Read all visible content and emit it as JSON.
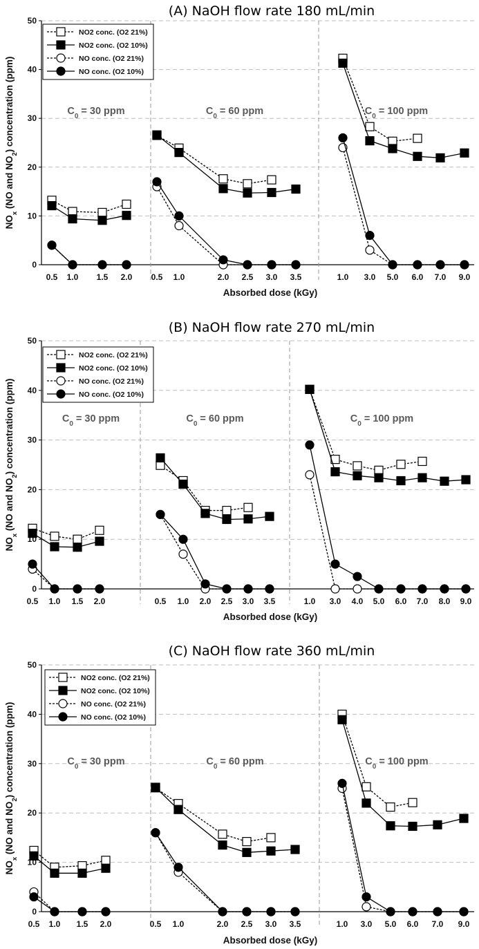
{
  "legend": [
    "NO2 conc. (O2 21%)",
    "NO2 conc. (O2 10%)",
    "NO conc. (O2 21%)",
    "NO conc. (O2 10%)"
  ],
  "axis": {
    "xlabel": "Absorbed dose (kGy)",
    "ylabel_parts": [
      "NO",
      "x",
      " (NO and NO",
      "2",
      ") concentration (ppm)"
    ],
    "ylim": [
      0,
      50
    ],
    "yticks": [
      "0",
      "10",
      "20",
      "30",
      "40",
      "50"
    ],
    "grid": "horizontal dashed"
  },
  "segment_label_parts": [
    [
      "C",
      "0",
      " = 30 ppm"
    ],
    [
      "C",
      "0",
      " = 60 ppm"
    ],
    [
      "C",
      "0",
      " = 100 ppm"
    ]
  ],
  "chart_data": [
    {
      "type": "line",
      "title": "(A) NaOH flow rate 180 mL/min",
      "segments": [
        {
          "label": "C0 = 30 ppm",
          "x": [
            "0.5",
            "1.0",
            "1.5",
            "2.0"
          ],
          "series": [
            {
              "name": "NO2 conc. (O2 21%)",
              "values": [
                13.2,
                10.9,
                10.7,
                12.4
              ]
            },
            {
              "name": "NO2 conc. (O2 10%)",
              "values": [
                12.1,
                9.4,
                9.1,
                10.1
              ]
            },
            {
              "name": "NO conc. (O2 21%)",
              "values": [
                4.0,
                0,
                0,
                0
              ]
            },
            {
              "name": "NO conc. (O2 10%)",
              "values": [
                4.0,
                0,
                0,
                0
              ]
            }
          ]
        },
        {
          "label": "C0 = 60 ppm",
          "x": [
            "0.5",
            "1.0",
            "2.0",
            "2.5",
            "3.0",
            "3.5"
          ],
          "series": [
            {
              "name": "NO2 conc. (O2 21%)",
              "values": [
                26.5,
                23.9,
                17.6,
                16.6,
                17.4,
                null
              ]
            },
            {
              "name": "NO2 conc. (O2 10%)",
              "values": [
                26.6,
                23.0,
                15.6,
                14.7,
                14.8,
                15.5
              ]
            },
            {
              "name": "NO conc. (O2 21%)",
              "values": [
                16.0,
                8.0,
                0,
                0,
                0,
                0
              ]
            },
            {
              "name": "NO conc. (O2 10%)",
              "values": [
                17.0,
                10.0,
                1.0,
                0,
                0,
                0
              ]
            }
          ]
        },
        {
          "label": "C0 = 100 ppm",
          "x": [
            "1.0",
            "3.0",
            "5.0",
            "6.0",
            "7.0",
            "9.0"
          ],
          "series": [
            {
              "name": "NO2 conc. (O2 21%)",
              "values": [
                42.3,
                28.3,
                25.3,
                25.9,
                null,
                null
              ]
            },
            {
              "name": "NO2 conc. (O2 10%)",
              "values": [
                41.3,
                25.4,
                23.8,
                22.2,
                21.9,
                22.9
              ]
            },
            {
              "name": "NO conc. (O2 21%)",
              "values": [
                24.0,
                3.0,
                0,
                0,
                0,
                0
              ]
            },
            {
              "name": "NO conc. (O2 10%)",
              "values": [
                26.0,
                6.0,
                0,
                0,
                0,
                0
              ]
            }
          ]
        }
      ]
    },
    {
      "type": "line",
      "title": "(B) NaOH flow rate 270 mL/min",
      "segments": [
        {
          "label": "C0 = 30 ppm",
          "x": [
            "0.5",
            "1.0",
            "1.5",
            "2.0"
          ],
          "series": [
            {
              "name": "NO2 conc. (O2 21%)",
              "values": [
                12.2,
                10.6,
                10.0,
                11.8
              ]
            },
            {
              "name": "NO2 conc. (O2 10%)",
              "values": [
                11.2,
                8.5,
                8.4,
                9.6
              ]
            },
            {
              "name": "NO conc. (O2 21%)",
              "values": [
                4.0,
                0,
                0,
                0
              ]
            },
            {
              "name": "NO conc. (O2 10%)",
              "values": [
                5.0,
                0,
                0,
                0
              ]
            }
          ]
        },
        {
          "label": "C0 = 60 ppm",
          "x": [
            "0.5",
            "1.0",
            "2.0",
            "2.5",
            "3.0",
            "3.5"
          ],
          "series": [
            {
              "name": "NO2 conc. (O2 21%)",
              "values": [
                24.9,
                21.8,
                15.8,
                15.8,
                16.4,
                null
              ]
            },
            {
              "name": "NO2 conc. (O2 10%)",
              "values": [
                26.4,
                21.1,
                15.2,
                14.0,
                14.1,
                14.6
              ]
            },
            {
              "name": "NO conc. (O2 21%)",
              "values": [
                15.0,
                7.0,
                0,
                0,
                0,
                0
              ]
            },
            {
              "name": "NO conc. (O2 10%)",
              "values": [
                15.0,
                10.0,
                1.0,
                0,
                0,
                0
              ]
            }
          ]
        },
        {
          "label": "C0 = 100 ppm",
          "x": [
            "1.0",
            "3.0",
            "4.0",
            "5.0",
            "6.0",
            "7.0",
            "8.0",
            "9.0"
          ],
          "series": [
            {
              "name": "NO2 conc. (O2 21%)",
              "values": [
                40.2,
                26.1,
                24.8,
                23.9,
                25.1,
                25.7,
                null,
                null
              ]
            },
            {
              "name": "NO2 conc. (O2 10%)",
              "values": [
                40.2,
                23.6,
                22.8,
                22.4,
                21.8,
                22.4,
                21.7,
                22.0
              ]
            },
            {
              "name": "NO conc. (O2 21%)",
              "values": [
                23.0,
                0,
                0,
                0,
                0,
                0,
                0,
                0
              ]
            },
            {
              "name": "NO conc. (O2 10%)",
              "values": [
                29.0,
                5.0,
                2.5,
                0,
                0,
                0,
                0,
                0
              ]
            }
          ]
        }
      ]
    },
    {
      "type": "line",
      "title": "(C) NaOH flow rate 360 mL/min",
      "segments": [
        {
          "label": "C0 = 30 ppm",
          "x": [
            "0.5",
            "1.0",
            "1.5",
            "2.0"
          ],
          "series": [
            {
              "name": "NO2 conc. (O2 21%)",
              "values": [
                12.4,
                9.0,
                9.3,
                10.4
              ]
            },
            {
              "name": "NO2 conc. (O2 10%)",
              "values": [
                11.3,
                7.8,
                7.8,
                8.8
              ]
            },
            {
              "name": "NO conc. (O2 21%)",
              "values": [
                4.0,
                0,
                0,
                0
              ]
            },
            {
              "name": "NO conc. (O2 10%)",
              "values": [
                3.0,
                0,
                0,
                0
              ]
            }
          ]
        },
        {
          "label": "C0 = 60 ppm",
          "x": [
            "0.5",
            "1.0",
            "2.0",
            "2.5",
            "3.0",
            "3.5"
          ],
          "series": [
            {
              "name": "NO2 conc. (O2 21%)",
              "values": [
                25.1,
                21.9,
                15.7,
                14.2,
                15.0,
                null
              ]
            },
            {
              "name": "NO2 conc. (O2 10%)",
              "values": [
                25.2,
                20.7,
                13.5,
                12.0,
                12.3,
                12.6
              ]
            },
            {
              "name": "NO conc. (O2 21%)",
              "values": [
                16.0,
                8.0,
                0,
                0,
                0,
                0
              ]
            },
            {
              "name": "NO conc. (O2 10%)",
              "values": [
                16.0,
                9.0,
                0,
                0,
                0,
                0
              ]
            }
          ]
        },
        {
          "label": "C0 = 100 ppm",
          "x": [
            "1.0",
            "3.0",
            "5.0",
            "6.0",
            "7.0",
            "9.0"
          ],
          "series": [
            {
              "name": "NO2 conc. (O2 21%)",
              "values": [
                40.0,
                25.3,
                21.2,
                22.1,
                null,
                null
              ]
            },
            {
              "name": "NO2 conc. (O2 10%)",
              "values": [
                38.9,
                22.0,
                17.4,
                17.3,
                17.6,
                18.9
              ]
            },
            {
              "name": "NO conc. (O2 21%)",
              "values": [
                25.0,
                1.0,
                0,
                0,
                0,
                0
              ]
            },
            {
              "name": "NO conc. (O2 10%)",
              "values": [
                26.0,
                3.0,
                0,
                0,
                0,
                0
              ]
            }
          ]
        }
      ]
    }
  ]
}
